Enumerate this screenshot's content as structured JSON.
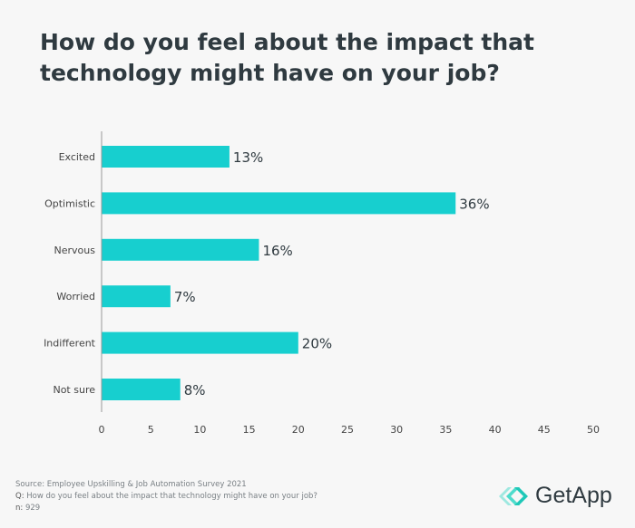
{
  "chart_data": {
    "type": "bar",
    "orientation": "horizontal",
    "title": "How do you feel about the impact that technology might have on your job?",
    "categories": [
      "Excited",
      "Optimistic",
      "Nervous",
      "Worried",
      "Indifferent",
      "Not sure"
    ],
    "values": [
      13,
      36,
      16,
      7,
      20,
      8
    ],
    "data_labels": [
      "13%",
      "36%",
      "16%",
      "7%",
      "20%",
      "8%"
    ],
    "xlim": [
      0,
      50
    ],
    "xticks": [
      0,
      5,
      10,
      15,
      20,
      25,
      30,
      35,
      40,
      45,
      50
    ],
    "grid": false,
    "bar_color": "#17cfcf"
  },
  "footer": {
    "source": "Source: Employee Upskilling & Job Automation Survey 2021",
    "q_label": "Q:",
    "question": "How do you feel about the impact that technology might have on your job?",
    "n_label": "n:",
    "n": "929"
  },
  "logo": {
    "text": "GetApp",
    "icon": "getapp-chevrons-icon",
    "color": "#2fd0c0"
  }
}
